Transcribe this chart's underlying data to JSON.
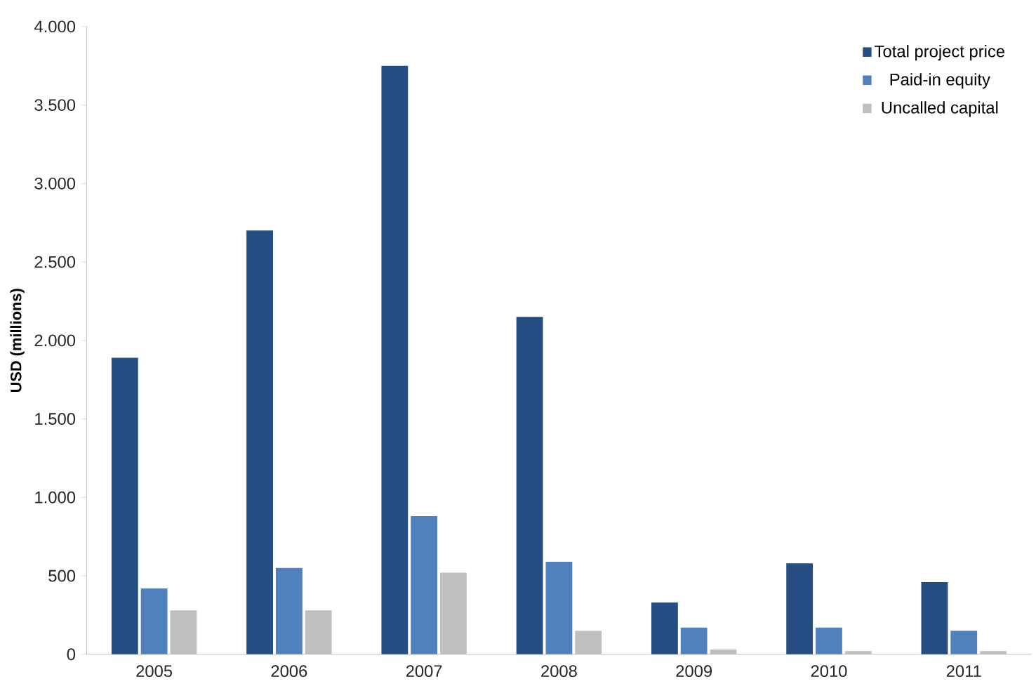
{
  "chart_data": {
    "type": "bar",
    "ylabel": "USD (millions)",
    "categories": [
      "2005",
      "2006",
      "2007",
      "2008",
      "2009",
      "2010",
      "2011"
    ],
    "series": [
      {
        "name": "Total project price",
        "color": "#254d82",
        "values": [
          1890,
          2700,
          3750,
          2150,
          330,
          580,
          460
        ]
      },
      {
        "name": "Paid-in equity",
        "color": "#4f81bd",
        "values": [
          420,
          550,
          880,
          590,
          170,
          170,
          150
        ]
      },
      {
        "name": "Uncalled capital",
        "color": "#bfbfbf",
        "values": [
          280,
          280,
          520,
          150,
          30,
          20,
          20
        ]
      }
    ],
    "ylim": [
      0,
      4000
    ],
    "yticks": [
      0,
      500,
      {
        "value": 1000,
        "label": "1.000"
      },
      {
        "value": 1500,
        "label": "1.500"
      },
      {
        "value": 2000,
        "label": "2.000"
      },
      {
        "value": 2500,
        "label": "2.500"
      },
      {
        "value": 3000,
        "label": "3.000"
      },
      {
        "value": 3500,
        "label": "3.500"
      },
      {
        "value": 4000,
        "label": "4.000"
      }
    ],
    "grid": false,
    "legend": "top right"
  }
}
